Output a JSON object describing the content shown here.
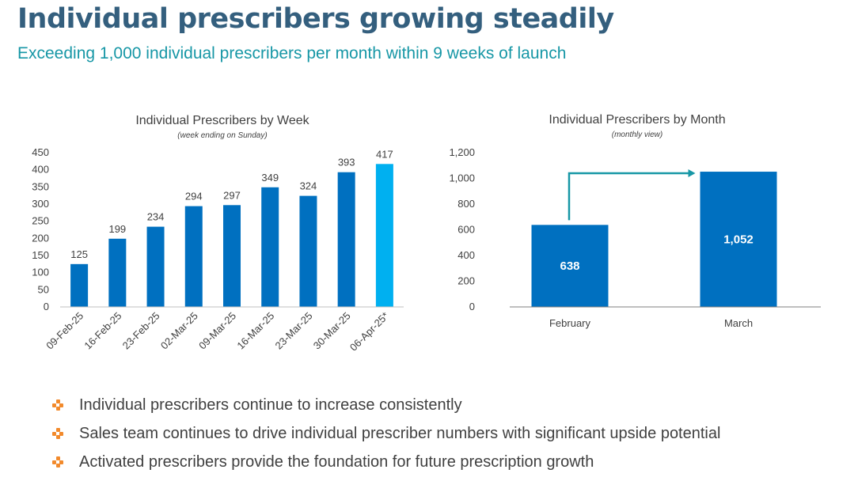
{
  "header": {
    "title": "Individual prescribers growing steadily",
    "subtitle": "Exceeding 1,000 individual prescribers per month within 9 weeks of launch"
  },
  "colors": {
    "title": "#345f7e",
    "subtitle": "#1797a6",
    "bar": "#0070c0",
    "bar_highlight": "#00b0f0",
    "arrow": "#1797a6",
    "bullet": "#f28a2c"
  },
  "chart_data": [
    {
      "type": "bar",
      "title": "Individual Prescribers by Week",
      "subtitle": "(week ending on Sunday)",
      "xlabel": "",
      "ylabel": "",
      "ylim": [
        0,
        450
      ],
      "yticks": [
        0,
        50,
        100,
        150,
        200,
        250,
        300,
        350,
        400,
        450
      ],
      "ytick_labels": [
        "0",
        "50",
        "100",
        "150",
        "200",
        "250",
        "300",
        "350",
        "400",
        "450"
      ],
      "grid": false,
      "legend": "none",
      "categories": [
        "09-Feb-25",
        "16-Feb-25",
        "23-Feb-25",
        "02-Mar-25",
        "09-Mar-25",
        "16-Mar-25",
        "23-Mar-25",
        "30-Mar-25",
        "06-Apr-25*"
      ],
      "values": [
        125,
        199,
        234,
        294,
        297,
        349,
        324,
        393,
        417
      ],
      "data_labels": [
        "125",
        "199",
        "234",
        "294",
        "297",
        "349",
        "324",
        "393",
        "417"
      ],
      "highlight_index": 8
    },
    {
      "type": "bar",
      "title": "Individual Prescribers by Month",
      "subtitle": "(monthly view)",
      "xlabel": "",
      "ylabel": "",
      "ylim": [
        0,
        1200
      ],
      "yticks": [
        0,
        200,
        400,
        600,
        800,
        1000,
        1200
      ],
      "ytick_labels": [
        "0",
        "200",
        "400",
        "600",
        "800",
        "1,000",
        "1,200"
      ],
      "grid": false,
      "legend": "none",
      "categories": [
        "February",
        "March"
      ],
      "values": [
        638,
        1052
      ],
      "data_labels": [
        "638",
        "1,052"
      ],
      "annotation": "growth arrow from February to March"
    }
  ],
  "bullets": [
    "Individual prescribers continue to increase consistently",
    "Sales team continues to drive individual prescriber numbers with significant upside potential",
    "Activated prescribers provide the foundation for future prescription growth"
  ]
}
